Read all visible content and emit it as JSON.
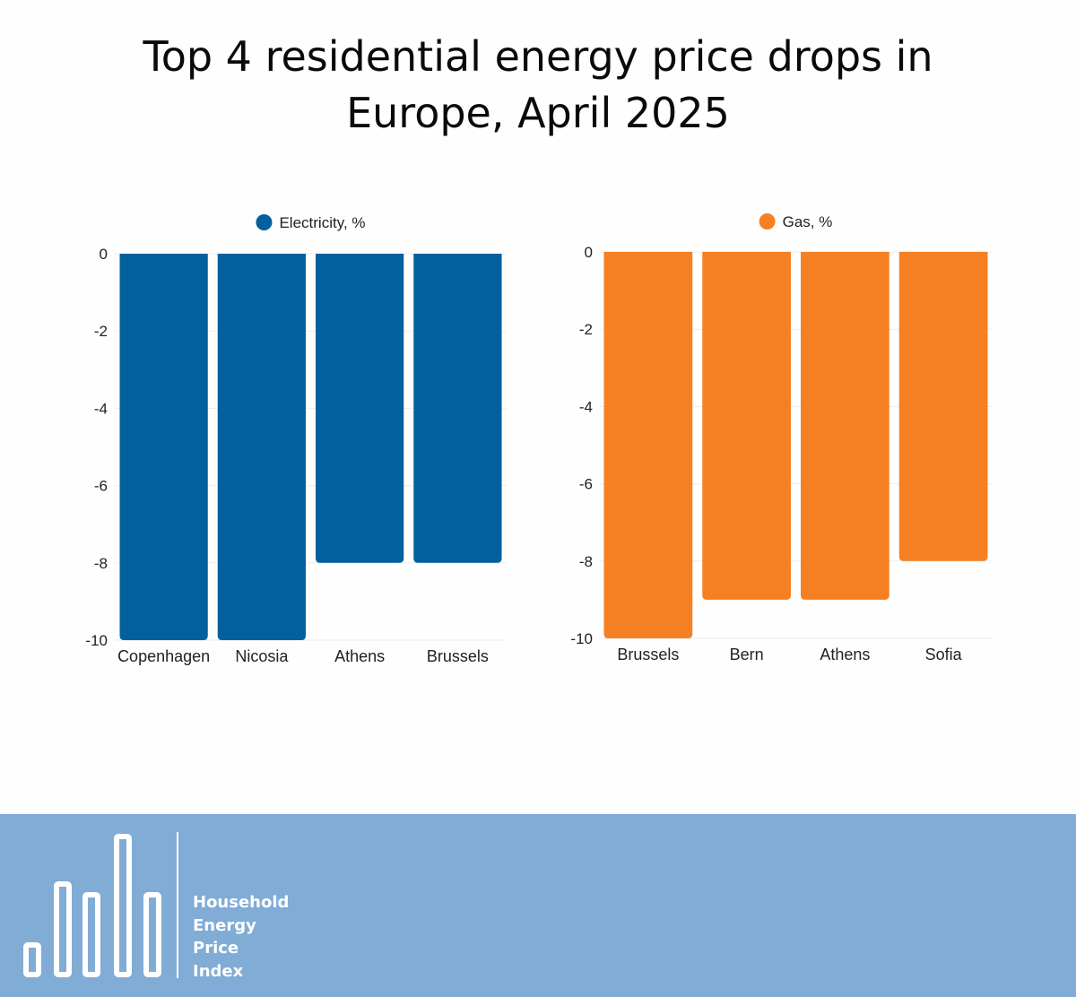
{
  "title_line1": "Top 4 residential energy price drops in",
  "title_line2": "Europe, April 2025",
  "chart_data": [
    {
      "type": "bar",
      "legend": "Electricity, %",
      "color": "#02609e",
      "categories": [
        "Copenhagen",
        "Nicosia",
        "Athens",
        "Brussels"
      ],
      "values": [
        -10,
        -10,
        -8,
        -8
      ],
      "ylim": [
        -10,
        0
      ],
      "yticks": [
        0,
        -2,
        -4,
        -6,
        -8,
        -10
      ],
      "grid": true,
      "legend_position": "top-center"
    },
    {
      "type": "bar",
      "legend": "Gas, %",
      "color": "#f58023",
      "categories": [
        "Brussels",
        "Bern",
        "Athens",
        "Sofia"
      ],
      "values": [
        -10,
        -9,
        -9,
        -8
      ],
      "ylim": [
        -10,
        0
      ],
      "yticks": [
        0,
        -2,
        -4,
        -6,
        -8,
        -10
      ],
      "grid": true,
      "legend_position": "top-center"
    }
  ],
  "footer": {
    "background": "#80acd6",
    "logo_lines": [
      "Household",
      "Energy",
      "Price",
      "Index"
    ]
  }
}
